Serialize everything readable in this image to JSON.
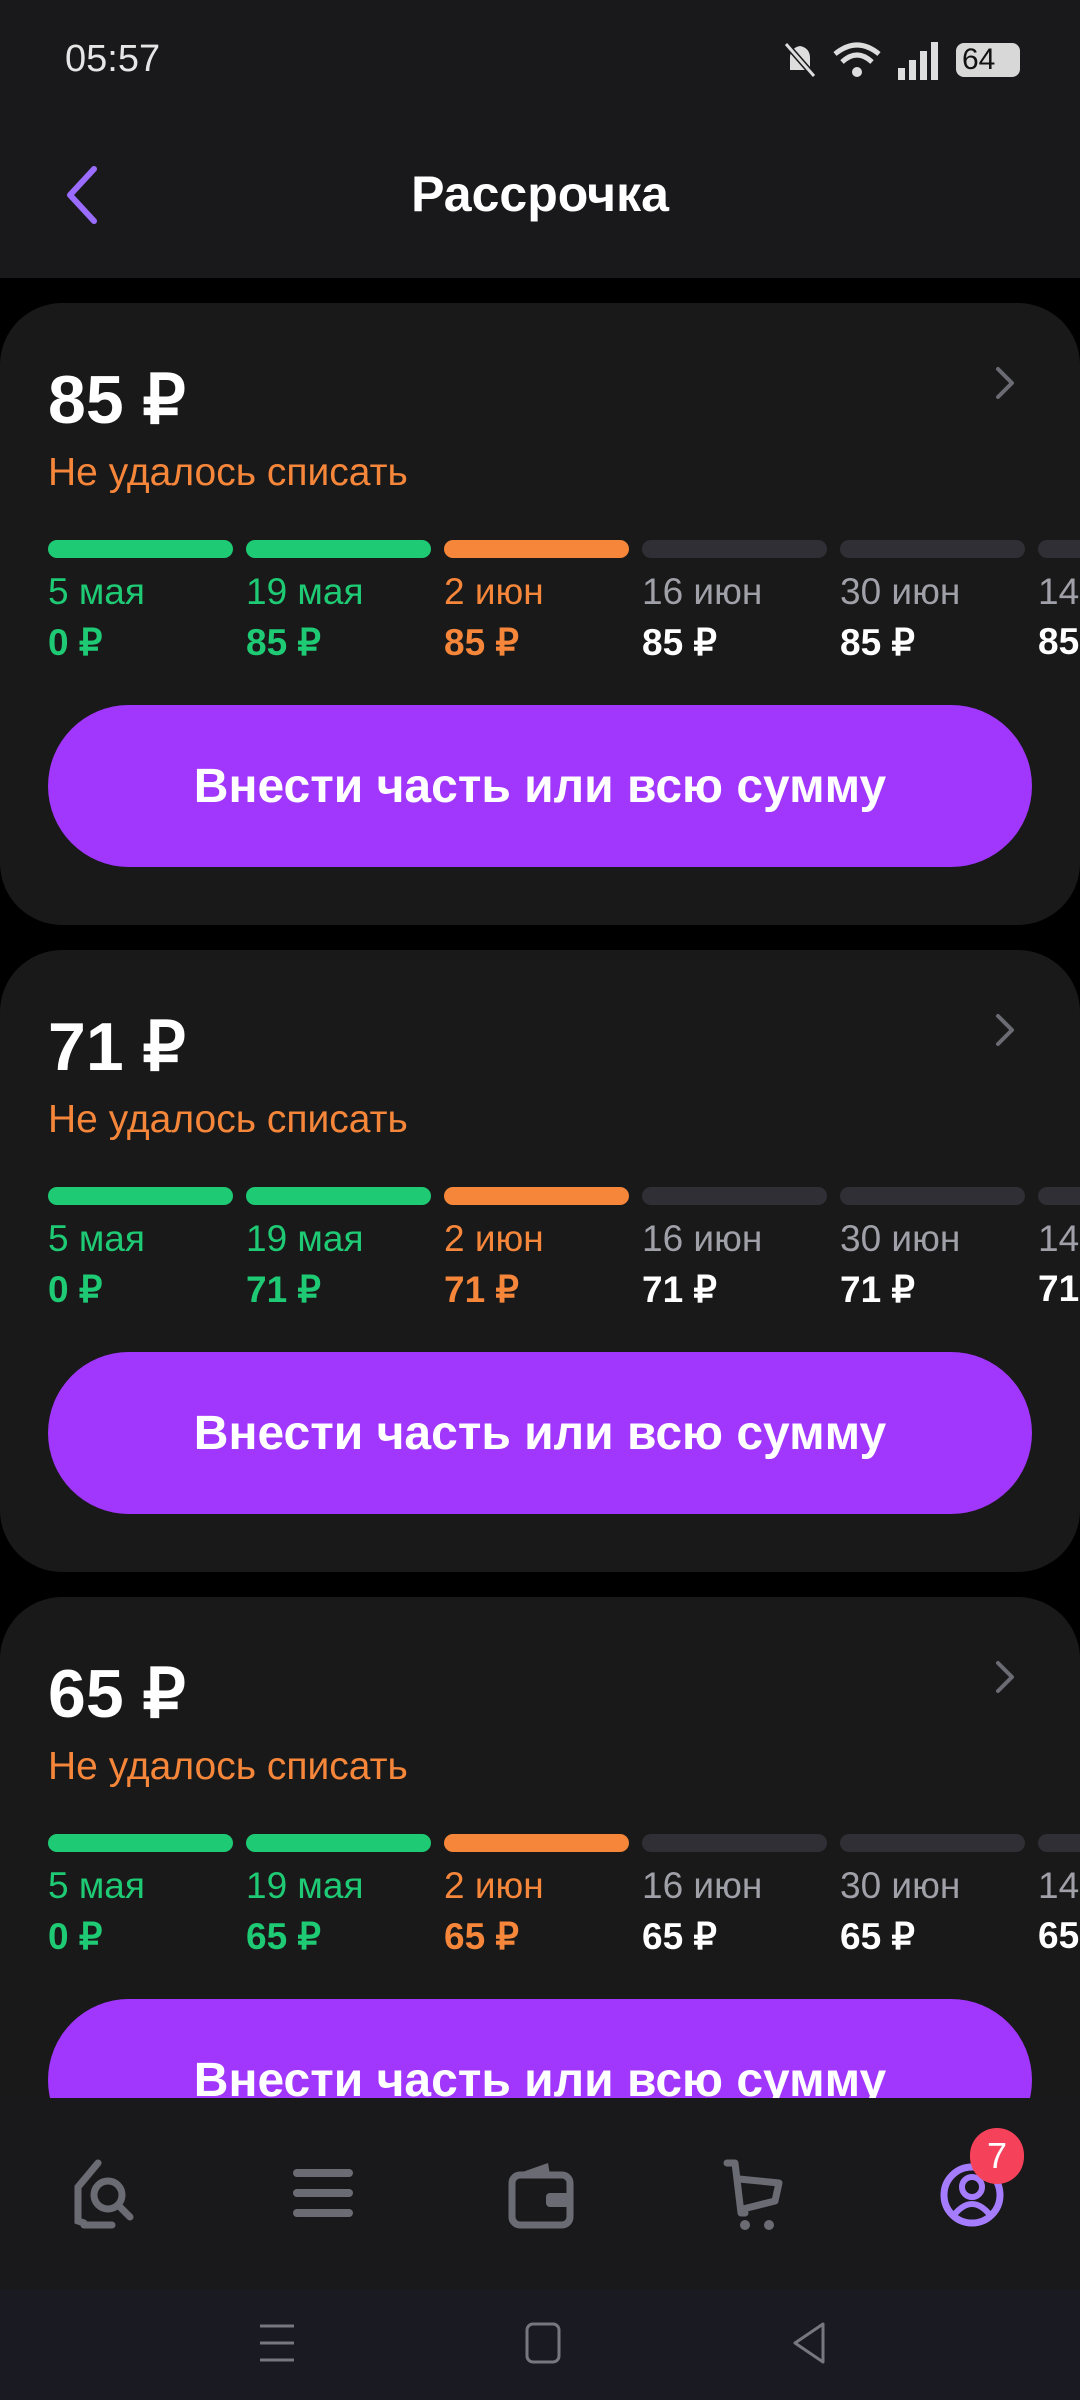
{
  "status_bar": {
    "time": "05:57",
    "battery": "64",
    "icons": [
      "bell-muted-icon",
      "wifi-icon",
      "signal-icon",
      "battery-icon"
    ]
  },
  "header": {
    "title": "Рассрочка",
    "back_icon": "chevron-left-icon"
  },
  "colors": {
    "paid": "#1fca74",
    "failed": "#f5863a",
    "future": "#2f2f35",
    "accent": "#a136fd",
    "back": "#9a6cff"
  },
  "cards": [
    {
      "amount": "85 ₽",
      "status": "Не удалось списать",
      "button": "Внести часть или всю сумму",
      "schedule": [
        {
          "date": "5 мая",
          "value": "0 ₽",
          "state": "paid"
        },
        {
          "date": "19 мая",
          "value": "85 ₽",
          "state": "paid"
        },
        {
          "date": "2 июн",
          "value": "85 ₽",
          "state": "failed"
        },
        {
          "date": "16 июн",
          "value": "85 ₽",
          "state": "future"
        },
        {
          "date": "30 июн",
          "value": "85 ₽",
          "state": "future"
        },
        {
          "date": "14",
          "value": "85",
          "state": "future"
        }
      ]
    },
    {
      "amount": "71 ₽",
      "status": "Не удалось списать",
      "button": "Внести часть или всю сумму",
      "schedule": [
        {
          "date": "5 мая",
          "value": "0 ₽",
          "state": "paid"
        },
        {
          "date": "19 мая",
          "value": "71 ₽",
          "state": "paid"
        },
        {
          "date": "2 июн",
          "value": "71 ₽",
          "state": "failed"
        },
        {
          "date": "16 июн",
          "value": "71 ₽",
          "state": "future"
        },
        {
          "date": "30 июн",
          "value": "71 ₽",
          "state": "future"
        },
        {
          "date": "14",
          "value": "71",
          "state": "future"
        }
      ]
    },
    {
      "amount": "65 ₽",
      "status": "Не удалось списать",
      "button": "Внести часть или всю сумму",
      "schedule": [
        {
          "date": "5 мая",
          "value": "0 ₽",
          "state": "paid"
        },
        {
          "date": "19 мая",
          "value": "65 ₽",
          "state": "paid"
        },
        {
          "date": "2 июн",
          "value": "65 ₽",
          "state": "failed"
        },
        {
          "date": "16 июн",
          "value": "65 ₽",
          "state": "future"
        },
        {
          "date": "30 июн",
          "value": "65 ₽",
          "state": "future"
        },
        {
          "date": "14",
          "value": "65",
          "state": "future"
        }
      ]
    }
  ],
  "bottom_nav": {
    "items": [
      "home-search-icon",
      "menu-icon",
      "wallet-icon",
      "cart-icon",
      "profile-icon"
    ],
    "active": "profile-icon",
    "profile_badge": "7"
  }
}
